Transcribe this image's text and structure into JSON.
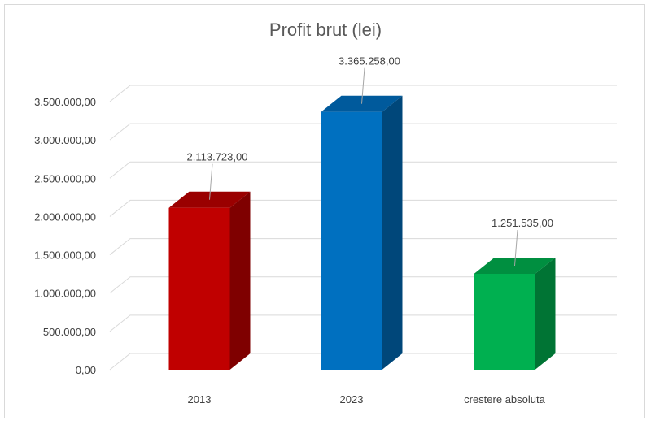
{
  "chart_data": {
    "type": "bar",
    "title": "Profit brut (lei)",
    "categories": [
      "2013",
      "2023",
      "crestere absoluta"
    ],
    "values": [
      2113723.0,
      3365258.0,
      1251535.0
    ],
    "value_labels": [
      "2.113.723,00",
      "3.365.258,00",
      "1.251.535,00"
    ],
    "ylim": [
      0,
      3500000
    ],
    "yticks": [
      0,
      500000,
      1000000,
      1500000,
      2000000,
      2500000,
      3000000,
      3500000
    ],
    "ytick_labels": [
      "0,00",
      "500.000,00",
      "1.000.000,00",
      "1.500.000,00",
      "2.000.000,00",
      "2.500.000,00",
      "3.000.000,00",
      "3.500.000,00"
    ],
    "grid": true,
    "legend": "none",
    "style": "3d-column",
    "colors": [
      {
        "front": "#c00000",
        "side": "#7f0000",
        "top": "#9a0000"
      },
      {
        "front": "#0070c0",
        "side": "#00477a",
        "top": "#005a9c"
      },
      {
        "front": "#00b050",
        "side": "#007434",
        "top": "#008f40"
      }
    ]
  }
}
